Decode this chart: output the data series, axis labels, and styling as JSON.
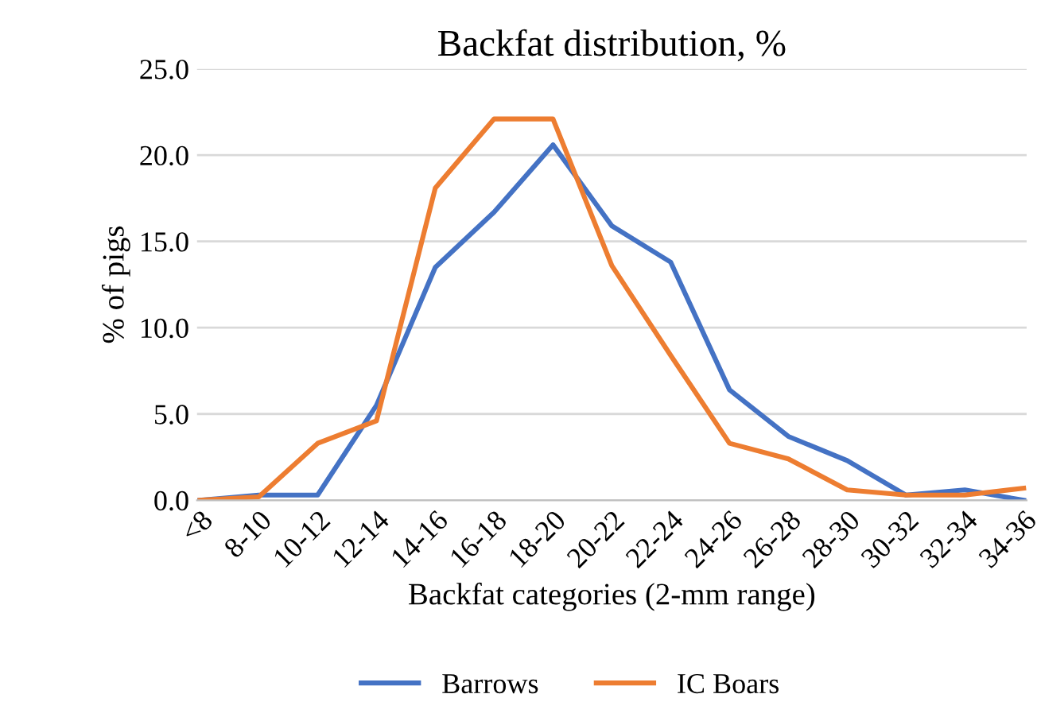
{
  "chart_data": {
    "type": "line",
    "title": "Backfat distribution, %",
    "xlabel": "Backfat categories (2-mm range)",
    "ylabel": "% of pigs",
    "categories": [
      "<8",
      "8-10",
      "10-12",
      "12-14",
      "14-16",
      "16-18",
      "18-20",
      "20-22",
      "22-24",
      "24-26",
      "26-28",
      "28-30",
      "30-32",
      "32-34",
      "34-36"
    ],
    "series": [
      {
        "name": "Barrows",
        "color": "#4472c4",
        "values": [
          0,
          0.3,
          0.3,
          5.5,
          13.5,
          16.7,
          20.6,
          15.9,
          13.8,
          6.4,
          3.7,
          2.3,
          0.3,
          0.6,
          0.0
        ]
      },
      {
        "name": "IC Boars",
        "color": "#ed7d31",
        "values": [
          0,
          0.2,
          3.3,
          4.6,
          18.1,
          22.1,
          22.1,
          13.6,
          8.4,
          3.3,
          2.4,
          0.6,
          0.3,
          0.3,
          0.7
        ]
      }
    ],
    "ylim": [
      0,
      25
    ],
    "yticks": [
      {
        "value": 0,
        "label": "0.0"
      },
      {
        "value": 5,
        "label": "5.0"
      },
      {
        "value": 10,
        "label": "10.0"
      },
      {
        "value": 15,
        "label": "15.0"
      },
      {
        "value": 20,
        "label": "20.0"
      },
      {
        "value": 25,
        "label": "25.0"
      }
    ],
    "grid": "y",
    "legend": "bottom",
    "marker": "none",
    "line_style": "solid"
  }
}
